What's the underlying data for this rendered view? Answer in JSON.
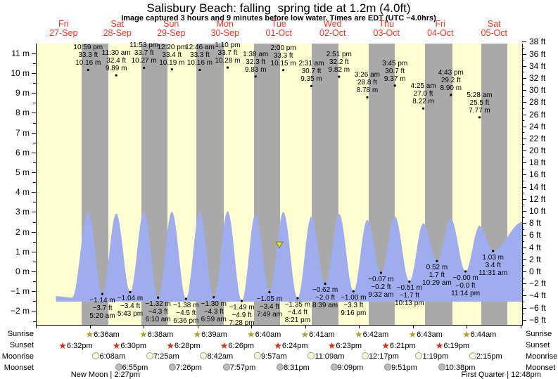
{
  "title": "Salisbury Beach: falling  spring tide at 1.2m (4.0ft)",
  "subtitle": "Image captured 3 hours and 9 minutes before low water. Times are EDT (UTC −4.0hrs)",
  "colors": {
    "day_band": "#ffffd2",
    "night_band": "#a9a9a9",
    "curve_fill": "#9fadee",
    "header_red": "#fe3321",
    "marker_fill": "#e6e040",
    "marker_stroke": "#7a7a10",
    "sunrise_star": "#b3a229",
    "sunset_star": "#dd2b11",
    "moonrise_fill": "#ffffd6",
    "moonrise_border": "#999999",
    "moonset_fill": "#bbbbbb",
    "moonset_border": "#8a8a8a"
  },
  "chart_data": {
    "type": "area",
    "title": "Salisbury Beach: falling  spring tide at 1.2m (4.0ft)",
    "x_axis": {
      "days": [
        {
          "name": "Fri",
          "date": "27-Sep"
        },
        {
          "name": "Sat",
          "date": "28-Sep"
        },
        {
          "name": "Sun",
          "date": "29-Sep"
        },
        {
          "name": "Mon",
          "date": "30-Sep"
        },
        {
          "name": "Tue",
          "date": "01-Oct"
        },
        {
          "name": "Wed",
          "date": "02-Oct"
        },
        {
          "name": "Thu",
          "date": "03-Oct"
        },
        {
          "name": "Fri",
          "date": "04-Oct"
        },
        {
          "name": "Sat",
          "date": "05-Oct"
        }
      ]
    },
    "y_axis_left": {
      "unit": "m",
      "major_ticks": [
        11,
        10,
        9,
        8,
        7,
        6,
        5,
        4,
        3,
        2,
        1,
        0,
        -1,
        -2
      ],
      "minor_step": 0.5
    },
    "y_axis_right": {
      "unit": "ft",
      "major_ticks": [
        38,
        36,
        34,
        32,
        30,
        28,
        26,
        24,
        22,
        20,
        18,
        16,
        14,
        12,
        10,
        8,
        6,
        4,
        2,
        0,
        -2,
        -4,
        -6,
        -8
      ]
    },
    "high_tides": [
      {
        "t": 0.9576,
        "time": "10:59 pm",
        "ft": "33.3 ft",
        "m": "10.16 m",
        "m_val": 10.16
      },
      {
        "t": 1.4792,
        "time": "11:30 am",
        "ft": "32.4 ft",
        "m": "9.89 m",
        "m_val": 9.89
      },
      {
        "t": 1.9951,
        "time": "11:53 pm",
        "ft": "33.7 ft",
        "m": "10.27 m",
        "m_val": 10.27
      },
      {
        "t": 2.5139,
        "time": "12:20 pm",
        "ft": "33.4 ft",
        "m": "10.19 m",
        "m_val": 10.19
      },
      {
        "t": 3.0319,
        "time": "12:46 am",
        "ft": "33.3 ft",
        "m": "10.16 m",
        "m_val": 10.16
      },
      {
        "t": 3.5486,
        "time": "1:10 pm",
        "ft": "33.7 ft",
        "m": "10.28 m",
        "m_val": 10.28
      },
      {
        "t": 4.0681,
        "time": "1:38 am",
        "ft": "32.3 ft",
        "m": "9.83 m",
        "m_val": 9.83
      },
      {
        "t": 4.5833,
        "time": "2:00 pm",
        "ft": "33.3 ft",
        "m": "10.15 m",
        "m_val": 10.15
      },
      {
        "t": 5.1049,
        "time": "2:31 am",
        "ft": "30.7 ft",
        "m": "9.35 m",
        "m_val": 9.35
      },
      {
        "t": 5.6188,
        "time": "2:51 pm",
        "ft": "32.2 ft",
        "m": "9.82 m",
        "m_val": 9.82
      },
      {
        "t": 6.1431,
        "time": "3:26 am",
        "ft": "28.8 ft",
        "m": "8.78 m",
        "m_val": 8.78
      },
      {
        "t": 6.6563,
        "time": "3:45 pm",
        "ft": "30.7 ft",
        "m": "9.37 m",
        "m_val": 9.37
      },
      {
        "t": 7.184,
        "time": "4:25 am",
        "ft": "27.0 ft",
        "m": "8.22 m",
        "m_val": 8.22
      },
      {
        "t": 7.6965,
        "time": "4:43 pm",
        "ft": "29.2 ft",
        "m": "8.90 m",
        "m_val": 8.9
      },
      {
        "t": 8.2278,
        "time": "5:28 am",
        "ft": "25.5 ft",
        "m": "7.77 m",
        "m_val": 7.77
      }
    ],
    "low_tides": [
      {
        "t": 1.2222,
        "m": "−1.14 m",
        "ft": "−3.7 ft",
        "time": "5:20 am",
        "m_val": -1.14
      },
      {
        "t": 1.7382,
        "m": "−1.04 m",
        "ft": "−3.4 ft",
        "time": "5:43 pm",
        "m_val": -1.04
      },
      {
        "t": 2.2569,
        "m": "−1.32 m",
        "ft": "−4.3 ft",
        "time": "6:10 am",
        "m_val": -1.32
      },
      {
        "t": 2.775,
        "m": "−1.38 m",
        "ft": "−4.5 ft",
        "time": "6:36 pm",
        "m_val": -1.38
      },
      {
        "t": 3.291,
        "m": "−1.30 m",
        "ft": "−4.3 ft",
        "time": "6:59 am",
        "m_val": -1.3
      },
      {
        "t": 3.8111,
        "m": "−1.49 m",
        "ft": "−4.9 ft",
        "time": "7:28 pm",
        "m_val": -1.49
      },
      {
        "t": 4.3257,
        "m": "−1.05 m",
        "ft": "−3.4 ft",
        "time": "7:49 am",
        "m_val": -1.05
      },
      {
        "t": 4.8479,
        "m": "−1.35 m",
        "ft": "−4.4 ft",
        "time": "8:21 pm",
        "m_val": -1.35
      },
      {
        "t": 5.3604,
        "m": "−0.62 m",
        "ft": "−2.0 ft",
        "time": "8:39 am",
        "m_val": -0.62
      },
      {
        "t": 5.8861,
        "m": "−1.00 m",
        "ft": "−3.3 ft",
        "time": "9:16 pm",
        "m_val": -1.0
      },
      {
        "t": 6.3972,
        "m": "−0.07 m",
        "ft": "−0.2 ft",
        "time": "9:32 am",
        "m_val": -0.07
      },
      {
        "t": 6.9257,
        "m": "−0.51 m",
        "ft": "−1.7 ft",
        "time": "10:13 pm",
        "m_val": -0.51
      },
      {
        "t": 7.4368,
        "m": "0.52 m",
        "ft": "1.7 ft",
        "time": "10:29 am",
        "m_val": 0.52
      },
      {
        "t": 7.9681,
        "m": "−0.00 m",
        "ft": "−0.0 ft",
        "time": "11:14 pm",
        "m_val": 0.0
      },
      {
        "t": 8.4799,
        "m": "1.03 m",
        "ft": "3.4 ft",
        "time": "11:31 am",
        "m_val": 1.03
      }
    ],
    "curve": {
      "start": [
        0.36,
        -1.25
      ],
      "pre_low": [
        0.66,
        -1.32
      ],
      "end_high": [
        9.03,
        2.5
      ],
      "peak_display_scale": 0.296,
      "fill_bottom_m": -1.52
    },
    "night_bands": [
      [
        0.84,
        1.33
      ],
      [
        1.95,
        2.43
      ],
      [
        2.97,
        3.48
      ],
      [
        4.04,
        4.52
      ],
      [
        5.11,
        5.61
      ],
      [
        6.17,
        6.65
      ],
      [
        7.22,
        7.73
      ],
      [
        8.26,
        8.75
      ]
    ],
    "now_marker": {
      "t": 4.51,
      "value_m": 1.2
    }
  },
  "astro": {
    "row_labels": [
      "Sunrise",
      "Sunset",
      "Moonrise",
      "Moonset"
    ],
    "sunrise": [
      {
        "t": 1,
        "time": "6:36am"
      },
      {
        "t": 2,
        "time": "6:38am"
      },
      {
        "t": 3,
        "time": "6:39am"
      },
      {
        "t": 4,
        "time": "6:40am"
      },
      {
        "t": 5,
        "time": "6:41am"
      },
      {
        "t": 6,
        "time": "6:42am"
      },
      {
        "t": 7,
        "time": "6:43am"
      },
      {
        "t": 8,
        "time": "6:44am"
      }
    ],
    "sunset": [
      {
        "t": 0.5,
        "time": "6:32pm"
      },
      {
        "t": 1.5,
        "time": "6:30pm"
      },
      {
        "t": 2.5,
        "time": "6:28pm"
      },
      {
        "t": 3.5,
        "time": "6:26pm"
      },
      {
        "t": 4.5,
        "time": "6:24pm"
      },
      {
        "t": 5.5,
        "time": "6:23pm"
      },
      {
        "t": 6.5,
        "time": "6:21pm"
      },
      {
        "t": 7.5,
        "time": "6:19pm"
      }
    ],
    "moonrise": [
      {
        "t": 1.13,
        "time": "6:08am"
      },
      {
        "t": 2.13,
        "time": "7:25am"
      },
      {
        "t": 3.13,
        "time": "8:42am"
      },
      {
        "t": 4.13,
        "time": "9:57am"
      },
      {
        "t": 5.13,
        "time": "11:09am"
      },
      {
        "t": 6.13,
        "time": "12:17pm"
      },
      {
        "t": 7.13,
        "time": "1:19pm"
      },
      {
        "t": 8.13,
        "time": "2:15pm"
      }
    ],
    "moonset": [
      {
        "t": 1.55,
        "time": "6:55pm"
      },
      {
        "t": 2.55,
        "time": "7:26pm"
      },
      {
        "t": 3.55,
        "time": "7:57pm"
      },
      {
        "t": 4.55,
        "time": "8:31pm"
      },
      {
        "t": 5.55,
        "time": "9:09pm"
      },
      {
        "t": 6.55,
        "time": "9:51pm"
      },
      {
        "t": 7.55,
        "time": "10:38pm"
      }
    ],
    "phases": [
      {
        "text": "New Moon | 2:27pm",
        "t": 1.28
      },
      {
        "text": "First Quarter | 12:48pm",
        "t": 8.63
      }
    ]
  }
}
